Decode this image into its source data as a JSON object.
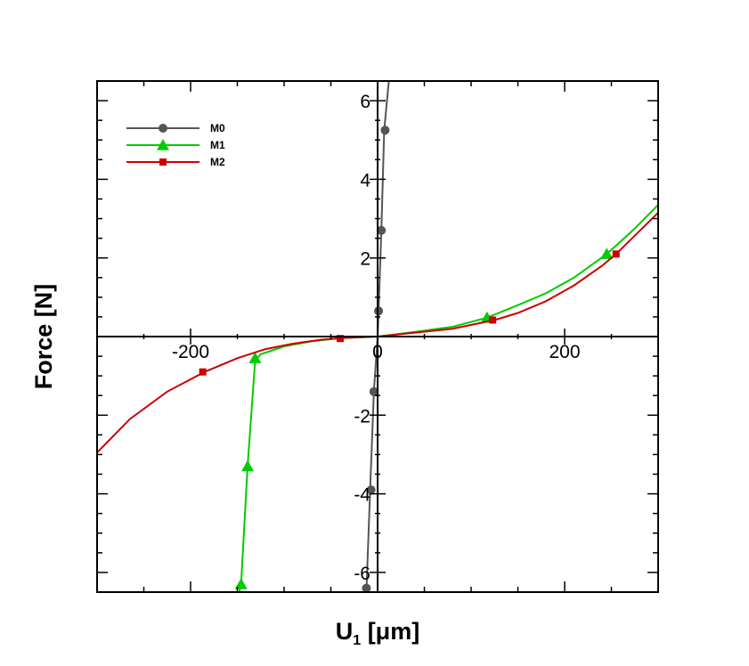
{
  "chart_data": {
    "type": "line",
    "title": "",
    "xlabel": "U",
    "xlabel_sub": "1",
    "xlabel_unit": " [μm]",
    "ylabel": "Force [N]",
    "xlim": [
      -300,
      300
    ],
    "ylim": [
      -6.5,
      6.5
    ],
    "x_ticks": [
      -200,
      0,
      200
    ],
    "x_tick_labels": [
      "-200",
      "0",
      "200"
    ],
    "y_ticks": [
      -6,
      -4,
      -2,
      0,
      2,
      4,
      6
    ],
    "y_tick_labels": [
      "-6",
      "-4",
      "-2",
      "0",
      "2",
      "4",
      "6"
    ],
    "legend_position": "top-left",
    "grid": false,
    "series": [
      {
        "name": "M0",
        "color": "#555555",
        "marker": "circle",
        "line": [
          [
            -12,
            -6.5
          ],
          [
            -8,
            -3.9
          ],
          [
            -4,
            -1.4
          ],
          [
            0,
            0
          ],
          [
            1,
            0.65
          ],
          [
            4,
            2.7
          ],
          [
            7,
            5.25
          ],
          [
            12,
            6.5
          ]
        ],
        "markers": [
          [
            -12,
            -6.4
          ],
          [
            -7,
            -3.9
          ],
          [
            -4,
            -1.4
          ],
          [
            1,
            0.65
          ],
          [
            4,
            2.7
          ],
          [
            8,
            5.25
          ]
        ]
      },
      {
        "name": "M1",
        "color": "#00cc00",
        "marker": "triangle",
        "line": [
          [
            -148,
            -6.5
          ],
          [
            -146,
            -6.3
          ],
          [
            -139,
            -3.3
          ],
          [
            -131,
            -0.6
          ],
          [
            -125,
            -0.45
          ],
          [
            -100,
            -0.25
          ],
          [
            -70,
            -0.12
          ],
          [
            -40,
            -0.04
          ],
          [
            0,
            0
          ],
          [
            40,
            0.12
          ],
          [
            80,
            0.25
          ],
          [
            117,
            0.48
          ],
          [
            150,
            0.8
          ],
          [
            180,
            1.1
          ],
          [
            210,
            1.5
          ],
          [
            245,
            2.1
          ],
          [
            275,
            2.75
          ],
          [
            300,
            3.35
          ]
        ],
        "markers": [
          [
            -146,
            -6.3
          ],
          [
            -139,
            -3.3
          ],
          [
            -131,
            -0.55
          ],
          [
            117,
            0.48
          ],
          [
            245,
            2.1
          ]
        ]
      },
      {
        "name": "M2",
        "color": "#cc0000",
        "marker": "square",
        "line": [
          [
            -300,
            -2.95
          ],
          [
            -265,
            -2.1
          ],
          [
            -225,
            -1.4
          ],
          [
            -185,
            -0.9
          ],
          [
            -150,
            -0.55
          ],
          [
            -120,
            -0.32
          ],
          [
            -90,
            -0.18
          ],
          [
            -60,
            -0.08
          ],
          [
            -40,
            -0.04
          ],
          [
            0,
            0
          ],
          [
            40,
            0.1
          ],
          [
            80,
            0.2
          ],
          [
            125,
            0.42
          ],
          [
            150,
            0.6
          ],
          [
            180,
            0.9
          ],
          [
            210,
            1.3
          ],
          [
            240,
            1.8
          ],
          [
            255,
            2.1
          ],
          [
            300,
            3.15
          ]
        ],
        "markers": [
          [
            -187,
            -0.9
          ],
          [
            -40,
            -0.05
          ],
          [
            123,
            0.42
          ],
          [
            255,
            2.1
          ]
        ]
      }
    ]
  }
}
